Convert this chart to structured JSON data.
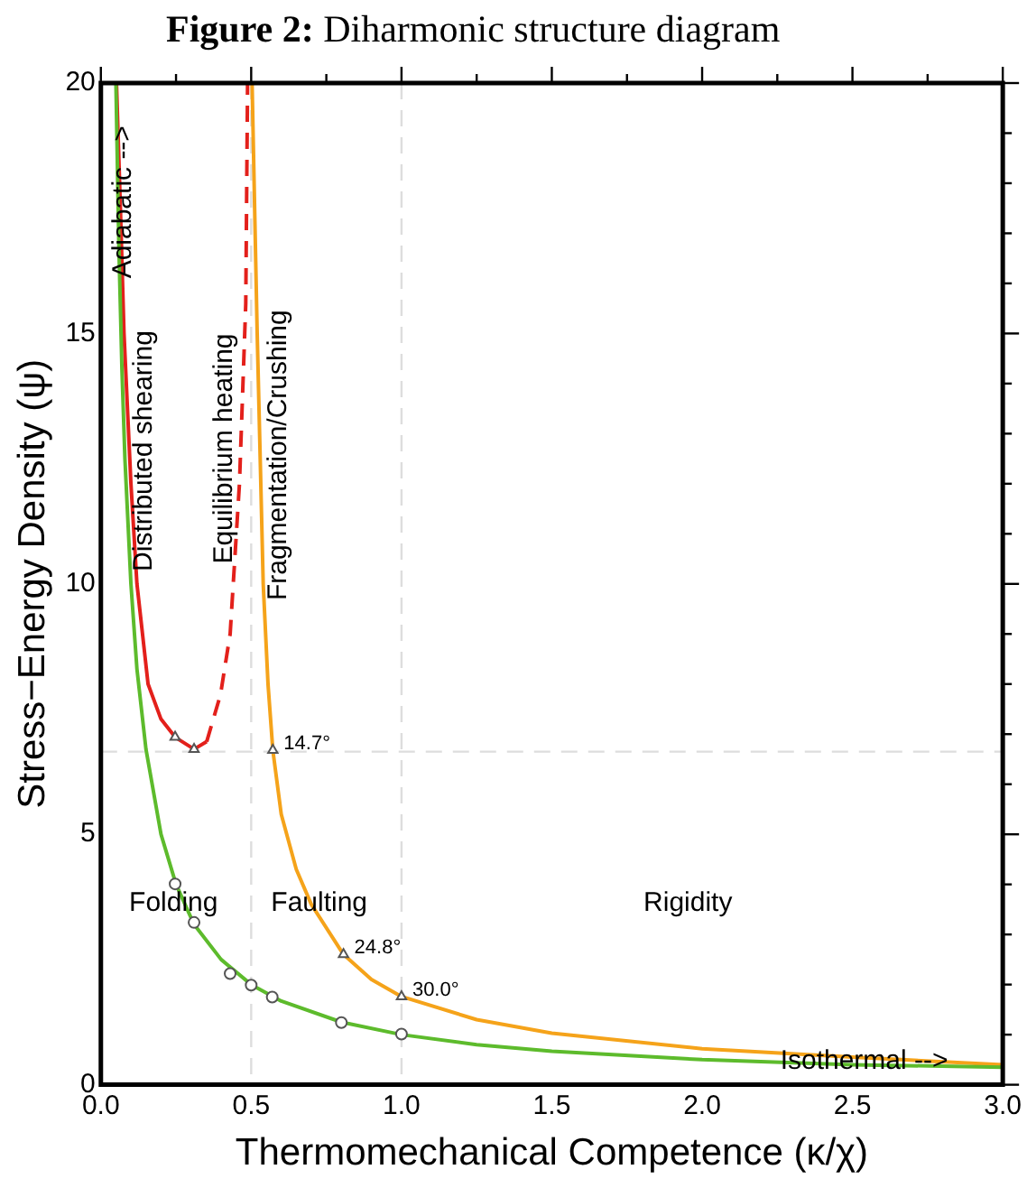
{
  "chart_data": {
    "type": "line",
    "title": "Figure 2: Diharmonic structure diagram",
    "xlabel": "Thermomechanical Competence (κ/χ)",
    "ylabel": "Stress−Energy Density (ψ)",
    "xlim": [
      0,
      3
    ],
    "xticks": [
      {
        "value": 0,
        "label": "0.0"
      },
      {
        "value": 0.25,
        "label": null
      },
      {
        "value": 0.5,
        "label": "0.5"
      },
      {
        "value": 0.75,
        "label": null
      },
      {
        "value": 1,
        "label": "1.0"
      },
      {
        "value": 1.25,
        "label": null
      },
      {
        "value": 1.5,
        "label": "1.5"
      },
      {
        "value": 1.75,
        "label": null
      },
      {
        "value": 2,
        "label": "2.0"
      },
      {
        "value": 2.25,
        "label": null
      },
      {
        "value": 2.5,
        "label": "2.5"
      },
      {
        "value": 2.75,
        "label": null
      },
      {
        "value": 3,
        "label": "3.0"
      }
    ],
    "ylim": [
      0,
      20
    ],
    "yticks": [
      0,
      {
        "value": 1,
        "label": null
      },
      {
        "value": 2,
        "label": null
      },
      {
        "value": 3,
        "label": null
      },
      {
        "value": 4,
        "label": null
      },
      5,
      {
        "value": 6,
        "label": null
      },
      {
        "value": 7,
        "label": null
      },
      {
        "value": 8,
        "label": null
      },
      {
        "value": 9,
        "label": null
      },
      10,
      {
        "value": 11,
        "label": null
      },
      {
        "value": 12,
        "label": null
      },
      {
        "value": 13,
        "label": null
      },
      {
        "value": 14,
        "label": null
      },
      15,
      {
        "value": 16,
        "label": null
      },
      {
        "value": 17,
        "label": null
      },
      {
        "value": 18,
        "label": null
      },
      {
        "value": 19,
        "label": null
      },
      20
    ],
    "grid": false,
    "legend": false,
    "ref_lines": [
      {
        "axis": "x",
        "value": 0.5,
        "color": "#dddddd",
        "line_style": "dashed"
      },
      {
        "axis": "x",
        "value": 1,
        "color": "#dddddd",
        "line_style": "dashed"
      },
      {
        "axis": "y",
        "value": 6.65,
        "color": "#dddddd",
        "line_style": "dashed"
      }
    ],
    "series": [
      {
        "color": "#5dbb2c",
        "marker": "none",
        "line_style": "solid",
        "x": [
          0.05,
          0.06,
          0.07,
          0.08,
          0.1,
          0.12,
          0.15,
          0.2,
          0.25,
          0.31,
          0.4,
          0.5,
          0.6,
          0.8,
          1,
          1.25,
          1.5,
          2,
          2.5,
          3
        ],
        "values": [
          20,
          16.7,
          14.3,
          12.5,
          10,
          8.3,
          6.7,
          5,
          4,
          3.2,
          2.5,
          2,
          1.67,
          1.25,
          1,
          0.8,
          0.67,
          0.5,
          0.4,
          0.35
        ]
      },
      {
        "color": "#f5a31a",
        "marker": "none",
        "line_style": "solid",
        "x": [
          0.503,
          0.52,
          0.54,
          0.556,
          0.572,
          0.6,
          0.65,
          0.7,
          0.807,
          0.9,
          1,
          1.25,
          1.5,
          2,
          2.5,
          3
        ],
        "values": [
          20,
          15,
          10,
          8,
          6.68,
          5.4,
          4.3,
          3.6,
          2.6,
          2.1,
          1.76,
          1.3,
          1.03,
          0.72,
          0.55,
          0.4
        ]
      },
      {
        "color": "#e3201b",
        "marker": "none",
        "line_style": "solid",
        "x": [
          0.052,
          0.065,
          0.077,
          0.1,
          0.12,
          0.157,
          0.2,
          0.247,
          0.31,
          0.352
        ],
        "values": [
          20,
          17.5,
          15,
          12,
          10,
          8,
          7.3,
          6.94,
          6.7,
          6.85
        ]
      },
      {
        "color": "#e3201b",
        "marker": "none",
        "line_style": "dashed",
        "x": [
          0.352,
          0.398,
          0.43,
          0.461,
          0.482,
          0.488
        ],
        "values": [
          6.85,
          7.79,
          9,
          12,
          15.6,
          20
        ]
      },
      {
        "type": "scatter",
        "color": "#555555",
        "marker": "circle",
        "x": [
          0.247,
          0.31,
          0.43,
          0.5,
          0.57,
          0.8,
          1
        ],
        "values": [
          4.01,
          3.24,
          2.22,
          1.99,
          1.75,
          1.24,
          1.01
        ]
      },
      {
        "type": "scatter",
        "color": "#555555",
        "marker": "triangle",
        "x": [
          0.247,
          0.31,
          0.572,
          0.807,
          1
        ],
        "values": [
          6.94,
          6.7,
          6.68,
          2.6,
          1.76
        ]
      }
    ],
    "annotations": [
      {
        "text": "Adiabatic -->",
        "x": 0.075,
        "y": 16.1
      },
      {
        "text": "Distributed shearing",
        "x": 0.145,
        "y": 10.25
      },
      {
        "text": "Equilibrium heating",
        "x": 0.41,
        "y": 10.4
      },
      "Fragmentation/Crushing",
      "Folding",
      "Faulting",
      "Rigidity",
      {
        "text": "Isothermal -->",
        "x": 2.26,
        "y": 0.47
      },
      {
        "text": "14.7°",
        "x": 0.572,
        "y": 6.68
      },
      {
        "text": "24.8°",
        "x": 0.807,
        "y": 2.6
      },
      {
        "text": "30.0°",
        "x": 1,
        "y": 1.76
      }
    ]
  }
}
